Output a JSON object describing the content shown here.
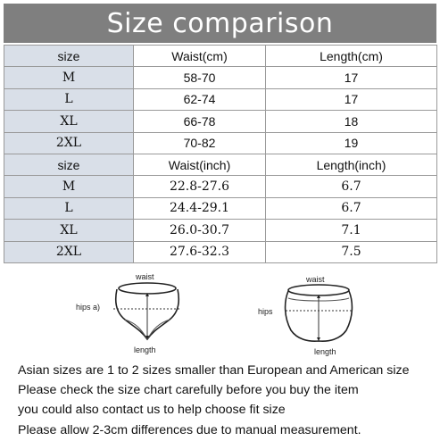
{
  "title": "Size comparison",
  "cm_table": {
    "headers": [
      "size",
      "Waist(cm)",
      "Length(cm)"
    ],
    "rows": [
      [
        "M",
        "58-70",
        "17"
      ],
      [
        "L",
        "62-74",
        "17"
      ],
      [
        "XL",
        "66-78",
        "18"
      ],
      [
        "2XL",
        "70-82",
        "19"
      ]
    ]
  },
  "inch_table": {
    "headers": [
      "size",
      "Waist(inch)",
      "Length(inch)"
    ],
    "rows": [
      [
        "M",
        "22.8-27.6",
        "6.7"
      ],
      [
        "L",
        "24.4-29.1",
        "6.7"
      ],
      [
        "XL",
        "26.0-30.7",
        "7.1"
      ],
      [
        "2XL",
        "27.6-32.3",
        "7.5"
      ]
    ]
  },
  "diagram_left": {
    "waist": "waist",
    "hips": "hips a)",
    "length": "length"
  },
  "diagram_right": {
    "waist": "waist",
    "hips": "hips",
    "length": "length"
  },
  "notes": [
    "Asian sizes are 1 to 2 sizes smaller than European and American size",
    "Please check the size chart carefully before you buy the item",
    "you could also contact us to help choose fit size",
    "Please allow 2-3cm differences due to manual measurement."
  ]
}
